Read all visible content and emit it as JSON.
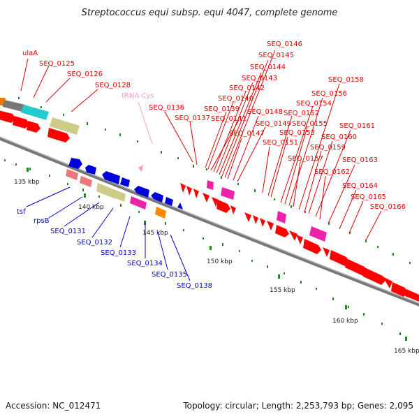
{
  "title": "Streptococcus equi subsp. equi 4047, complete genome",
  "footer": {
    "accession": "Accession: NC_012471",
    "summary": "Topology: circular; Length: 2,253,793 bp; Genes: 2,095"
  },
  "colors": {
    "forward_label": "#dd0000",
    "reverse_label": "#0000cc",
    "rna_label": "#ff99cc",
    "backbone": "#888888",
    "gc_marks": "#228822"
  },
  "tick_labels": [
    "135 kbp",
    "140 kbp",
    "145 kbp",
    "150 kbp",
    "155 kbp",
    "160 kbp",
    "165 kbp"
  ],
  "forward_labels": [
    "ulaA",
    "SEQ_0125",
    "SEQ_0126",
    "SEQ_0128",
    "SEQ_0136",
    "SEQ_0137",
    "SEQ_0139",
    "SEQ_0140",
    "SEQ_0141",
    "SEQ_0142",
    "SEQ_0143",
    "SEQ_0144",
    "SEQ_0145",
    "SEQ_0146",
    "SEQ_0147",
    "SEQ_0148",
    "SEQ_0149",
    "SEQ_0151",
    "SEQ_0152",
    "SEQ_0153",
    "SEQ_0154",
    "SEQ_0155",
    "SEQ_0156",
    "SEQ_0157",
    "SEQ_0158",
    "SEQ_0159",
    "SEQ_0160",
    "SEQ_0161",
    "SEQ_0162",
    "SEQ_0163",
    "SEQ_0164",
    "SEQ_0165",
    "SEQ_0166"
  ],
  "rna_labels": [
    "tRNA-Cys"
  ],
  "reverse_labels": [
    "tsf",
    "rpsB",
    "SEQ_0131",
    "SEQ_0132",
    "SEQ_0133",
    "SEQ_0134",
    "SEQ_0135",
    "SEQ_0138"
  ]
}
